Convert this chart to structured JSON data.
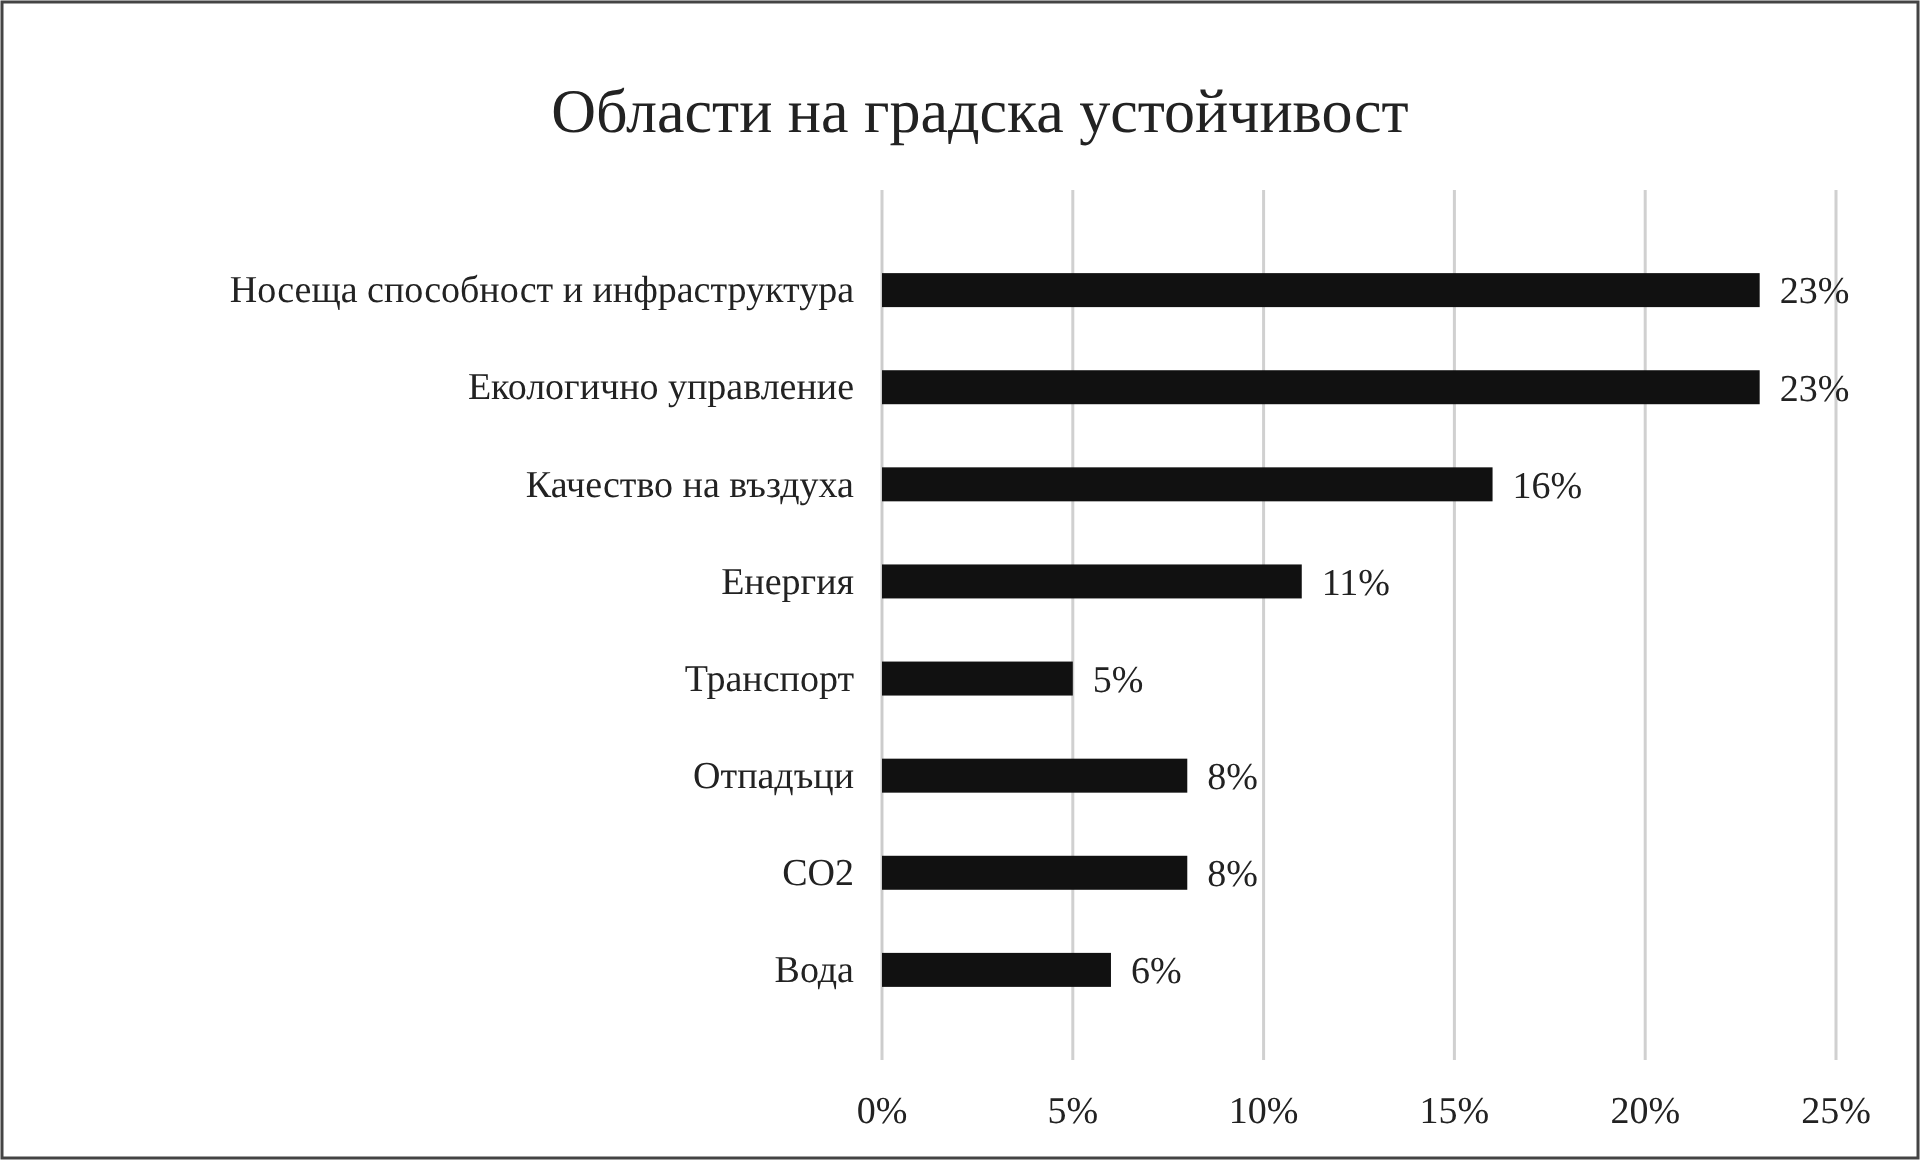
{
  "chart_data": {
    "type": "bar",
    "orientation": "horizontal",
    "title": "Области на градска устойчивост",
    "categories": [
      "Носеща способност и инфраструктура",
      "Екологично управление",
      "Качество на въздуха",
      "Енергия",
      "Транспорт",
      "Отпадъци",
      "CO2",
      "Вода"
    ],
    "values": [
      23,
      23,
      16,
      11,
      5,
      8,
      8,
      6
    ],
    "color": "#111111",
    "value_labels": [
      "23%",
      "23%",
      "16%",
      "11%",
      "5%",
      "8%",
      "8%",
      "6%"
    ],
    "xlim": [
      0,
      25
    ],
    "xticks": [
      {
        "value": 0,
        "label": "0%"
      },
      {
        "value": 5,
        "label": "5%"
      },
      {
        "value": 10,
        "label": "10%"
      },
      {
        "value": 15,
        "label": "15%"
      },
      {
        "value": 20,
        "label": "20%"
      },
      {
        "value": 25,
        "label": "25%"
      }
    ],
    "grid": "x"
  }
}
